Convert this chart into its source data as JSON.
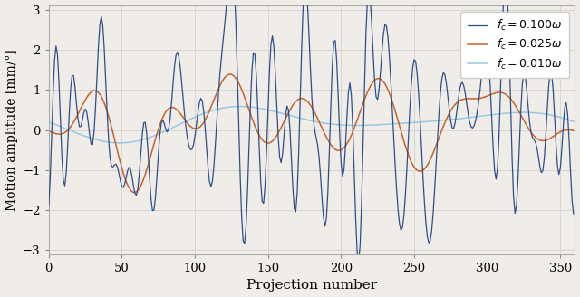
{
  "color_blue": "#2d4e8c",
  "color_orange": "#c8622a",
  "color_lightblue": "#98c8e0",
  "ylabel": "Motion amplitude [mm/°]",
  "xlabel": "Projection number",
  "ylim": [
    -3.1,
    3.1
  ],
  "xlim": [
    0,
    360
  ],
  "xticks": [
    0,
    50,
    100,
    150,
    200,
    250,
    300,
    350
  ],
  "yticks": [
    -3,
    -2,
    -1,
    0,
    1,
    2,
    3
  ],
  "legend_labels": [
    "$f_c=0.100\\omega$",
    "$f_c=0.025\\omega$",
    "$f_c=0.010\\omega$"
  ],
  "grid": true,
  "background_color": "#f0ede8",
  "seed": 7,
  "N": 360,
  "scale": 1.0
}
